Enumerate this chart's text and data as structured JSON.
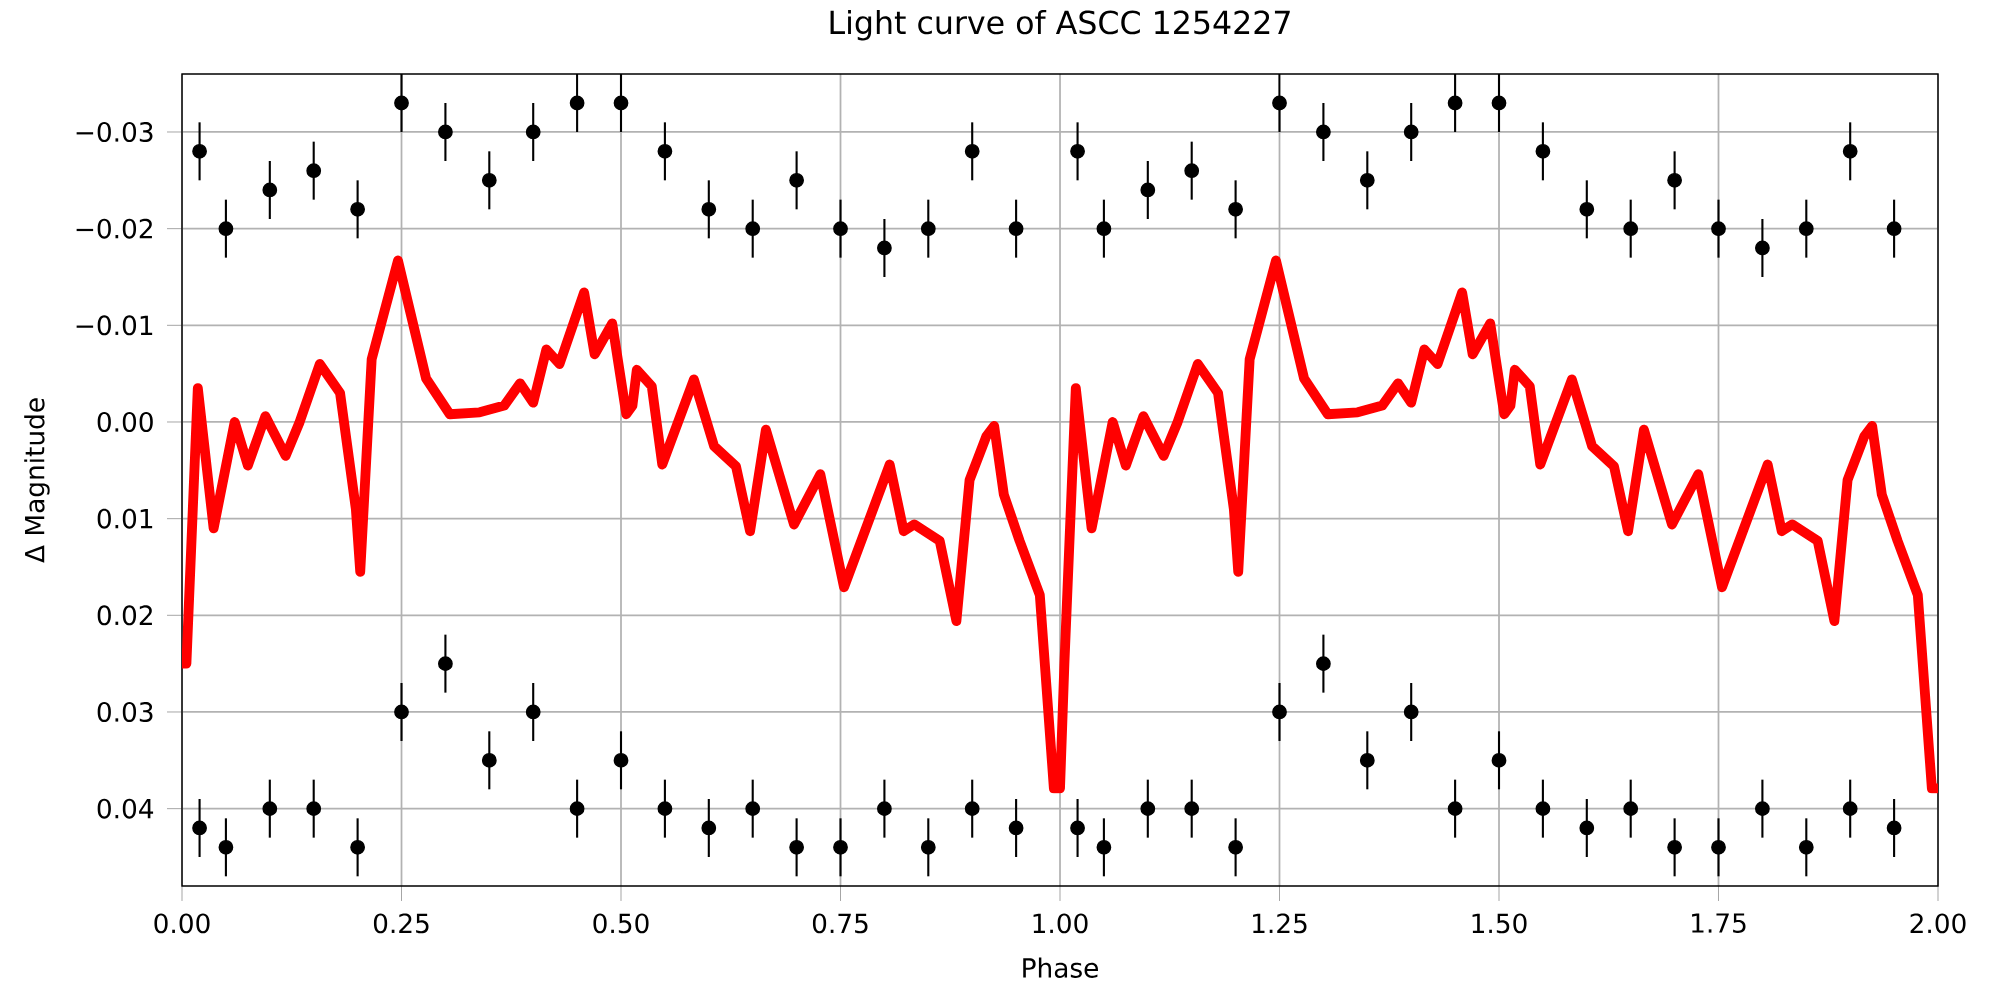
{
  "chart_data": {
    "type": "scatter",
    "title": "Light curve of ASCC 1254227",
    "xlabel": "Phase",
    "ylabel": "Δ Magnitude",
    "xlim": [
      0,
      2
    ],
    "ylim": [
      0.048,
      -0.036
    ],
    "xticks": [
      {
        "value": 0,
        "label": "0.00"
      },
      {
        "value": 0.25,
        "label": "0.25"
      },
      {
        "value": 0.5,
        "label": "0.50"
      },
      {
        "value": 0.75,
        "label": "0.75"
      },
      {
        "value": 1,
        "label": "1.00"
      },
      {
        "value": 1.25,
        "label": "1.25"
      },
      {
        "value": 1.5,
        "label": "1.50"
      },
      {
        "value": 1.75,
        "label": "1.75"
      },
      {
        "value": 2,
        "label": "2.00"
      }
    ],
    "yticks": [
      {
        "value": -0.03,
        "label": "−0.03"
      },
      {
        "value": -0.02,
        "label": "−0.02"
      },
      {
        "value": -0.01,
        "label": "−0.01"
      },
      {
        "value": 0,
        "label": "0.00"
      },
      {
        "value": 0.01,
        "label": "0.01"
      },
      {
        "value": 0.02,
        "label": "0.02"
      },
      {
        "value": 0.03,
        "label": "0.03"
      },
      {
        "value": 0.04,
        "label": "0.04"
      }
    ],
    "grid": true,
    "series": [
      {
        "color": "#000000",
        "marker": "circle",
        "x": [
          0.02,
          0.02,
          0.05,
          0.05,
          0.1,
          0.1,
          0.15,
          0.15,
          0.2,
          0.2,
          0.25,
          0.25,
          0.3,
          0.3,
          0.35,
          0.35,
          0.4,
          0.4,
          0.45,
          0.45,
          0.5,
          0.5,
          0.55,
          0.55,
          0.6,
          0.6,
          0.65,
          0.65,
          0.7,
          0.7,
          0.75,
          0.75,
          0.8,
          0.8,
          0.85,
          0.85,
          0.9,
          0.9,
          0.95,
          0.95,
          1.02,
          1.02,
          1.05,
          1.05,
          1.1,
          1.1,
          1.15,
          1.15,
          1.2,
          1.2,
          1.25,
          1.25,
          1.3,
          1.3,
          1.35,
          1.35,
          1.4,
          1.4,
          1.45,
          1.45,
          1.5,
          1.5,
          1.55,
          1.55,
          1.6,
          1.6,
          1.65,
          1.65,
          1.7,
          1.7,
          1.75,
          1.75,
          1.8,
          1.8,
          1.85,
          1.85,
          1.9,
          1.9,
          1.95,
          1.95
        ],
        "values": [
          -0.028,
          0.042,
          -0.02,
          0.044,
          -0.024,
          0.04,
          -0.026,
          0.04,
          -0.022,
          0.044,
          -0.033,
          0.03,
          -0.03,
          0.025,
          -0.025,
          0.035,
          -0.03,
          0.03,
          -0.033,
          0.04,
          -0.033,
          0.035,
          -0.028,
          0.04,
          -0.022,
          0.042,
          -0.02,
          0.04,
          -0.025,
          0.044,
          -0.02,
          0.044,
          -0.018,
          0.04,
          -0.02,
          0.044,
          -0.028,
          0.04,
          -0.02,
          0.042,
          -0.028,
          0.042,
          -0.02,
          0.044,
          -0.024,
          0.04,
          -0.026,
          0.04,
          -0.022,
          0.044,
          -0.033,
          0.03,
          -0.03,
          0.025,
          -0.025,
          0.035,
          -0.03,
          0.03,
          -0.033,
          0.04,
          -0.033,
          0.035,
          -0.028,
          0.04,
          -0.022,
          0.042,
          -0.02,
          0.04,
          -0.025,
          0.044,
          -0.02,
          0.044,
          -0.018,
          0.04,
          -0.02,
          0.044,
          -0.028,
          0.04,
          -0.02,
          0.042
        ],
        "errors": [
          0.003,
          0.003,
          0.003,
          0.003,
          0.003,
          0.003,
          0.003,
          0.003,
          0.003,
          0.003,
          0.003,
          0.003,
          0.003,
          0.003,
          0.003,
          0.003,
          0.003,
          0.003,
          0.003,
          0.003,
          0.003,
          0.003,
          0.003,
          0.003,
          0.003,
          0.003,
          0.003,
          0.003,
          0.003,
          0.003,
          0.003,
          0.003,
          0.003,
          0.003,
          0.003,
          0.003,
          0.003,
          0.003,
          0.003,
          0.003,
          0.003,
          0.003,
          0.003,
          0.003,
          0.003,
          0.003,
          0.003,
          0.003,
          0.003,
          0.003,
          0.003,
          0.003,
          0.003,
          0.003,
          0.003,
          0.003,
          0.003,
          0.003,
          0.003,
          0.003,
          0.003,
          0.003,
          0.003,
          0.003,
          0.003,
          0.003,
          0.003,
          0.003,
          0.003,
          0.003,
          0.003,
          0.003,
          0.003,
          0.003,
          0.003,
          0.003,
          0.003,
          0.003,
          0.003,
          0.003
        ]
      },
      {
        "type": "line",
        "color": "#ff0000",
        "marker": "none",
        "x": [
          0,
          0.005,
          0.018,
          0.036,
          0.06,
          0.075,
          0.095,
          0.118,
          0.134,
          0.157,
          0.18,
          0.198,
          0.203,
          0.216,
          0.246,
          0.278,
          0.305,
          0.339,
          0.367,
          0.385,
          0.4,
          0.415,
          0.43,
          0.458,
          0.47,
          0.49,
          0.506,
          0.513,
          0.518,
          0.535,
          0.547,
          0.583,
          0.606,
          0.631,
          0.647,
          0.665,
          0.697,
          0.727,
          0.754,
          0.806,
          0.822,
          0.834,
          0.863,
          0.882,
          0.897,
          0.916,
          0.925,
          0.936,
          0.954,
          0.977,
          0.993,
          1.0,
          1.005,
          1.018,
          1.036,
          1.06,
          1.075,
          1.095,
          1.118,
          1.134,
          1.157,
          1.18,
          1.198,
          1.203,
          1.216,
          1.246,
          1.278,
          1.305,
          1.339,
          1.367,
          1.385,
          1.4,
          1.415,
          1.43,
          1.458,
          1.47,
          1.49,
          1.506,
          1.513,
          1.518,
          1.535,
          1.547,
          1.583,
          1.606,
          1.631,
          1.647,
          1.665,
          1.697,
          1.727,
          1.754,
          1.806,
          1.822,
          1.834,
          1.863,
          1.882,
          1.897,
          1.916,
          1.925,
          1.936,
          1.954,
          1.977,
          1.993,
          2.0
        ],
        "values": [
          0.025,
          0.025,
          -0.0035,
          0.011,
          0,
          0.0045,
          -0.0006,
          0.0035,
          0,
          -0.006,
          -0.003,
          0.009,
          0.0155,
          -0.0065,
          -0.0167,
          -0.0045,
          -0.0008,
          -0.001,
          -0.0017,
          -0.004,
          -0.002,
          -0.0075,
          -0.006,
          -0.0134,
          -0.007,
          -0.0102,
          -0.0008,
          -0.0017,
          -0.0054,
          -0.0037,
          0.0044,
          -0.0044,
          0.0025,
          0.0046,
          0.0113,
          0.0008,
          0.0106,
          0.0054,
          0.0171,
          0.0044,
          0.0113,
          0.0106,
          0.0123,
          0.0206,
          0.006,
          0.0015,
          0.0004,
          0.0075,
          0.0123,
          0.0179,
          0.0379,
          0.0379,
          0.025,
          -0.0035,
          0.011,
          0,
          0.0045,
          -0.0006,
          0.0035,
          0,
          -0.006,
          -0.003,
          0.009,
          0.0155,
          -0.0065,
          -0.0167,
          -0.0045,
          -0.0008,
          -0.001,
          -0.0017,
          -0.004,
          -0.002,
          -0.0075,
          -0.006,
          -0.0134,
          -0.007,
          -0.0102,
          -0.0008,
          -0.0017,
          -0.0054,
          -0.0037,
          0.0044,
          -0.0044,
          0.0025,
          0.0046,
          0.0113,
          0.0008,
          0.0106,
          0.0054,
          0.0171,
          0.0044,
          0.0113,
          0.0106,
          0.0123,
          0.0206,
          0.006,
          0.0015,
          0.0004,
          0.0075,
          0.0123,
          0.0179,
          0.0379,
          0.0379
        ]
      }
    ]
  }
}
